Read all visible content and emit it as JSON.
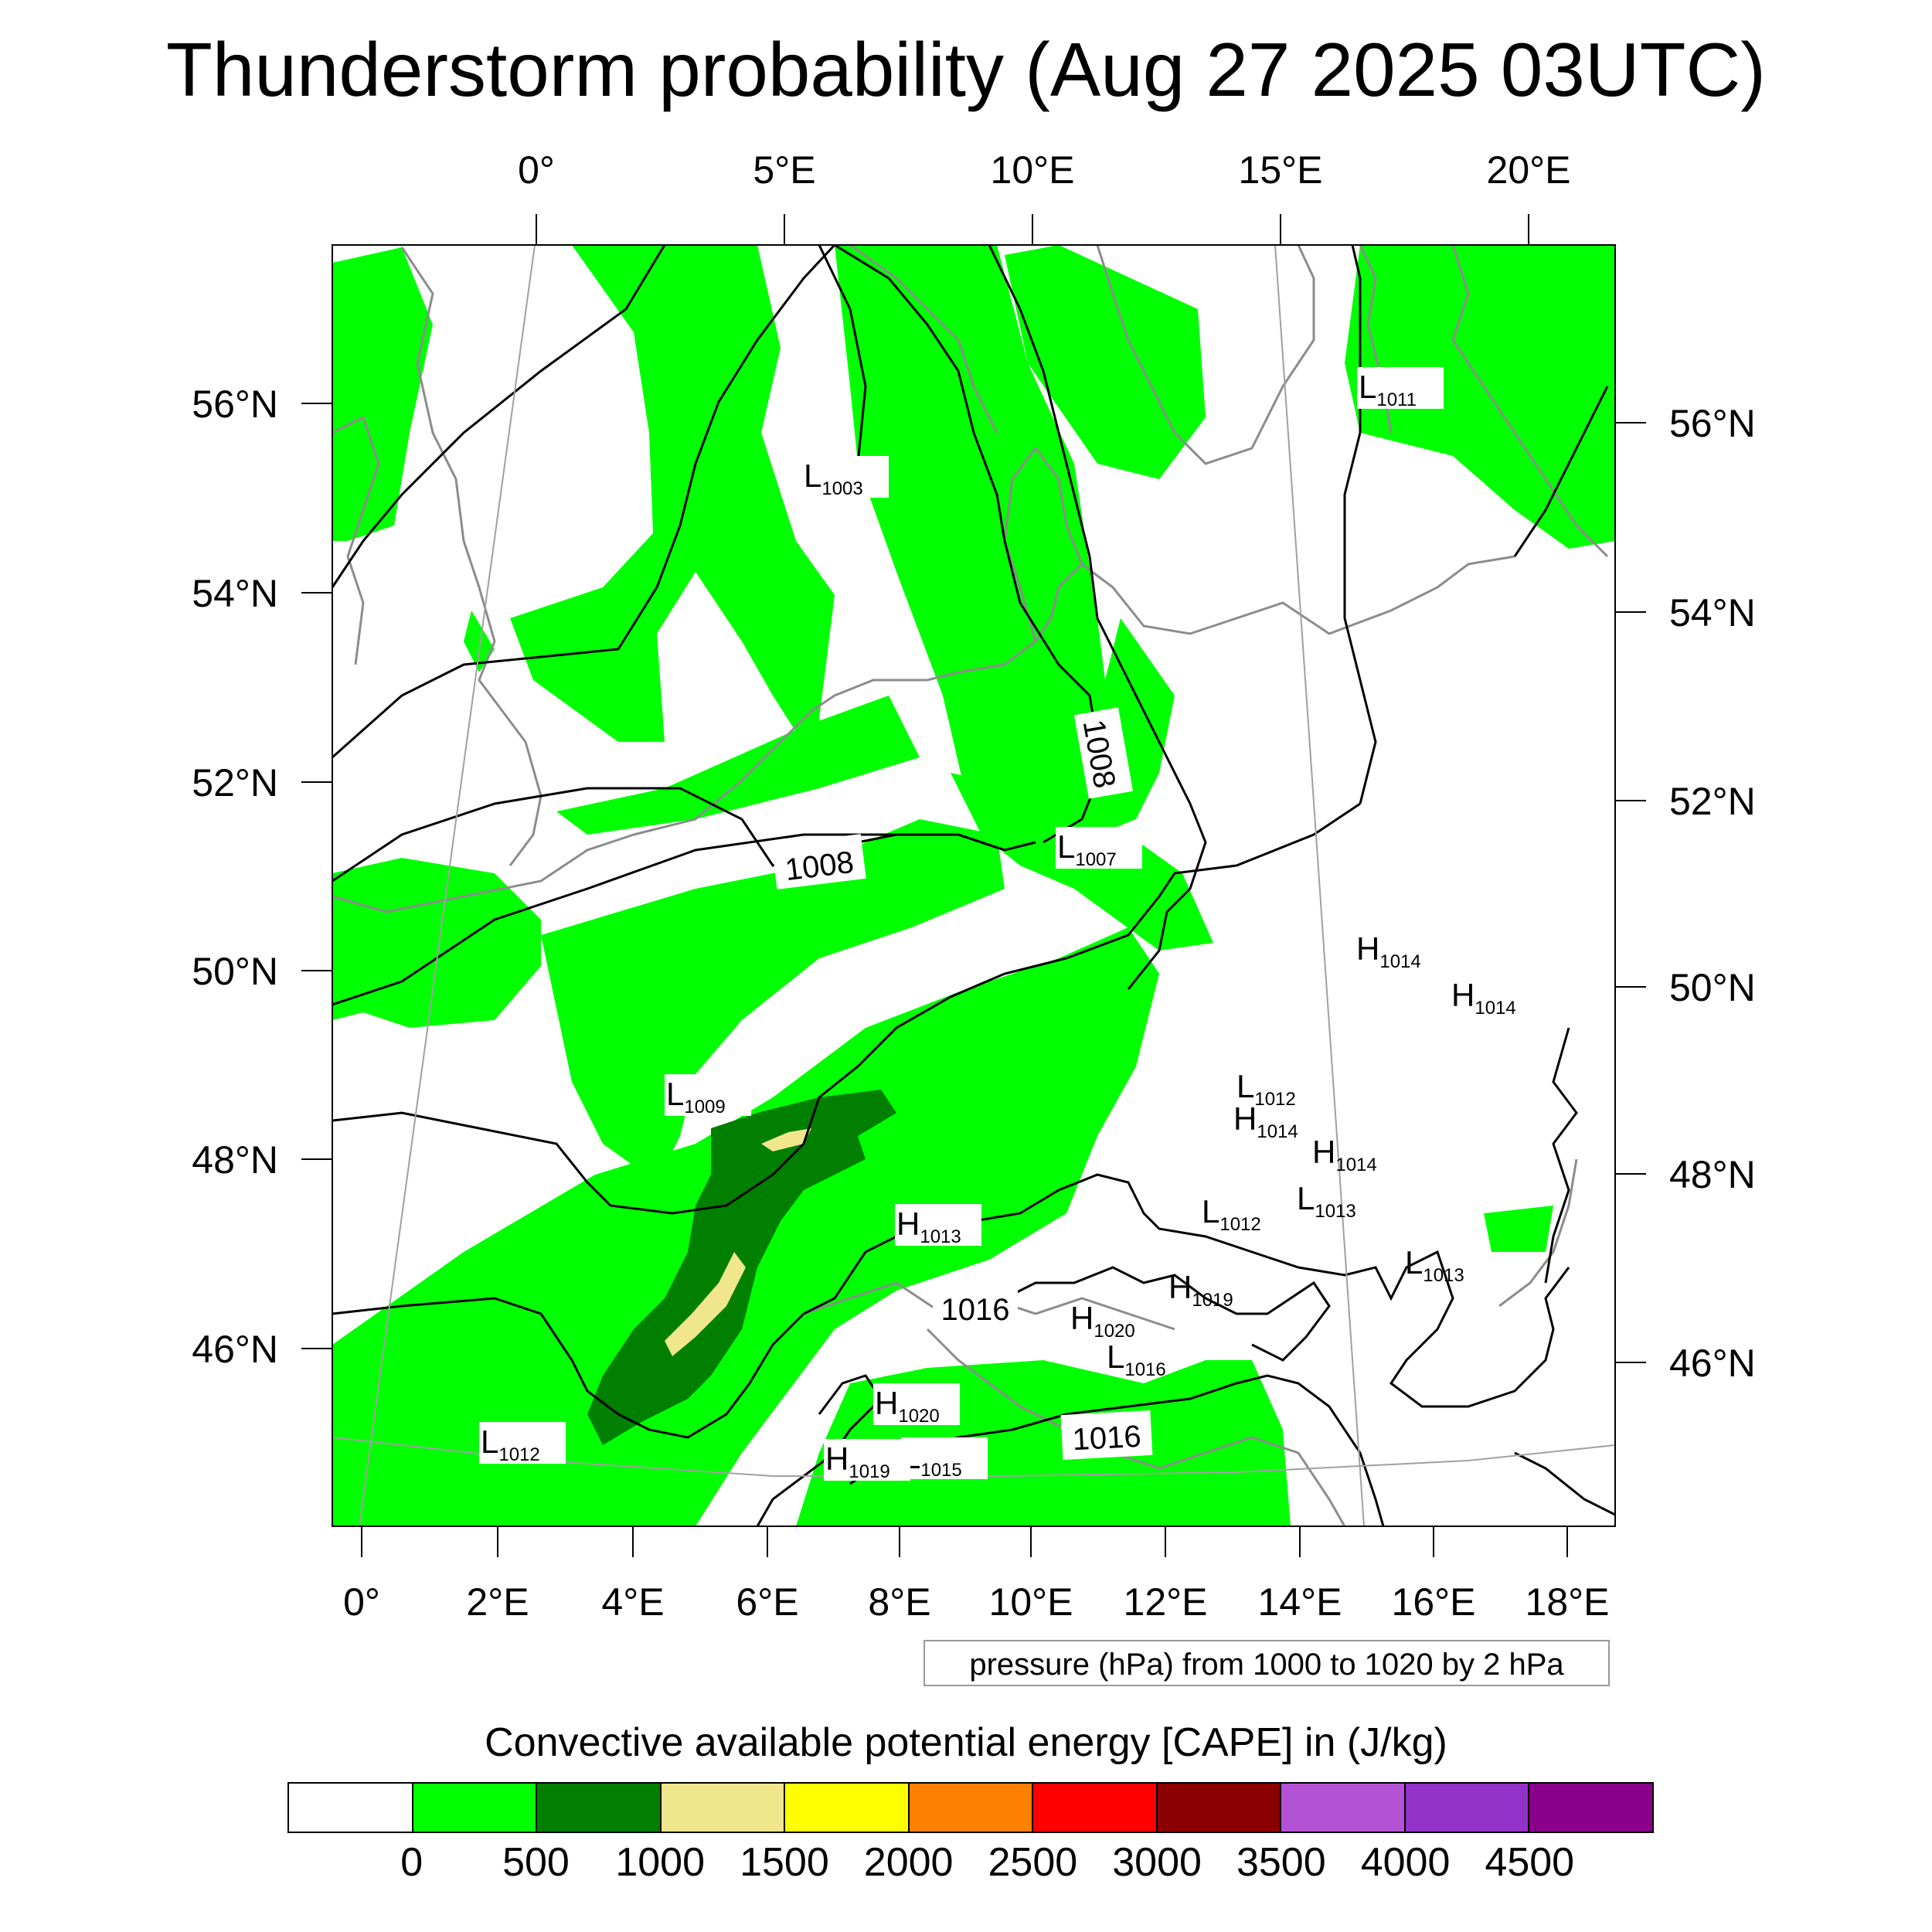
{
  "title": "Thunderstorm probability (Aug 27 2025 03UTC)",
  "top_lon_labels": [
    "0°",
    "5°E",
    "10°E",
    "15°E",
    "20°E"
  ],
  "bottom_lon_labels": [
    "0°",
    "2°E",
    "4°E",
    "6°E",
    "8°E",
    "10°E",
    "12°E",
    "14°E",
    "16°E",
    "18°E"
  ],
  "left_lat_labels": [
    "56°N",
    "54°N",
    "52°N",
    "50°N",
    "48°N",
    "46°N"
  ],
  "right_lat_labels": [
    "56°N",
    "54°N",
    "52°N",
    "50°N",
    "48°N",
    "46°N"
  ],
  "pressure_centers": [
    {
      "letter": "L",
      "value": "1011"
    },
    {
      "letter": "L",
      "value": "1003"
    },
    {
      "letter": "L",
      "value": "1007"
    },
    {
      "letter": "L",
      "value": "1009"
    },
    {
      "letter": "L",
      "value": "1012"
    },
    {
      "letter": "L",
      "value": "1012"
    },
    {
      "letter": "L",
      "value": "1012"
    },
    {
      "letter": "L",
      "value": "1013"
    },
    {
      "letter": "L",
      "value": "1013"
    },
    {
      "letter": "L",
      "value": "1016"
    },
    {
      "letter": "L",
      "value": "1015"
    },
    {
      "letter": "H",
      "value": "1014"
    },
    {
      "letter": "H",
      "value": "1014"
    },
    {
      "letter": "H",
      "value": "1014"
    },
    {
      "letter": "H",
      "value": "1014"
    },
    {
      "letter": "H",
      "value": "1013"
    },
    {
      "letter": "H",
      "value": "1019"
    },
    {
      "letter": "H",
      "value": "1020"
    },
    {
      "letter": "H",
      "value": "1020"
    },
    {
      "letter": "H",
      "value": "1019"
    }
  ],
  "isobar_labels": [
    "1008",
    "1008",
    "1016",
    "1016"
  ],
  "pressure_note": "pressure (hPa) from 1000 to 1020 by 2 hPa",
  "cape_title": "Convective available potential energy [CAPE] in (J/kg)",
  "colorbar": {
    "colors": [
      "#ffffff",
      "#00ff00",
      "#007f00",
      "#f0e68c",
      "#ffff00",
      "#ff7f00",
      "#ff0000",
      "#8b0000",
      "#b452d6",
      "#9232c8",
      "#8a008a"
    ],
    "labels": [
      "0",
      "500",
      "1000",
      "1500",
      "2000",
      "2500",
      "3000",
      "3500",
      "4000",
      "4500"
    ]
  },
  "colors": {
    "cape_low": "#00ff00",
    "cape_mid": "#007f00",
    "cape_high": "#f0e68c",
    "coastline": "#8c8c8c",
    "isobar": "#000000"
  }
}
